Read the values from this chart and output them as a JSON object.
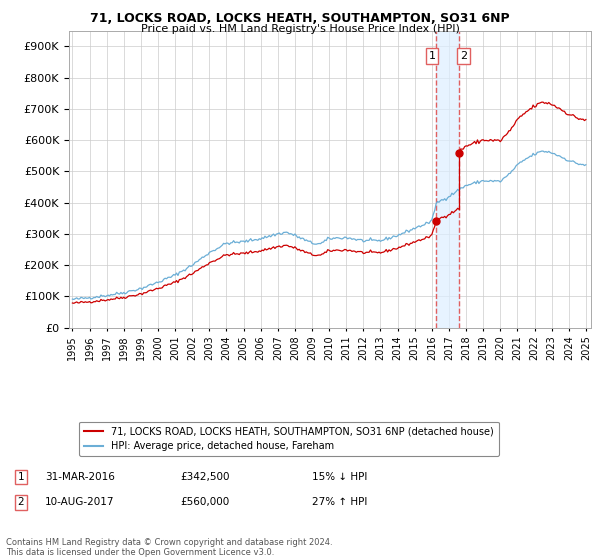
{
  "title": "71, LOCKS ROAD, LOCKS HEATH, SOUTHAMPTON, SO31 6NP",
  "subtitle": "Price paid vs. HM Land Registry's House Price Index (HPI)",
  "hpi_label": "HPI: Average price, detached house, Fareham",
  "property_label": "71, LOCKS ROAD, LOCKS HEATH, SOUTHAMPTON, SO31 6NP (detached house)",
  "footer": "Contains HM Land Registry data © Crown copyright and database right 2024.\nThis data is licensed under the Open Government Licence v3.0.",
  "sale1": {
    "date": "31-MAR-2016",
    "price": 342500,
    "pct": "15% ↓ HPI"
  },
  "sale2": {
    "date": "10-AUG-2017",
    "price": 560000,
    "pct": "27% ↑ HPI"
  },
  "sale1_x": 2016.25,
  "sale2_x": 2017.6,
  "ylim": [
    0,
    950000
  ],
  "xlim": [
    1994.8,
    2025.3
  ],
  "hpi_color": "#6baed6",
  "property_color": "#cc0000",
  "vline_color": "#e06060",
  "vband_color": "#ddeeff",
  "background_color": "#ffffff",
  "grid_color": "#cccccc"
}
